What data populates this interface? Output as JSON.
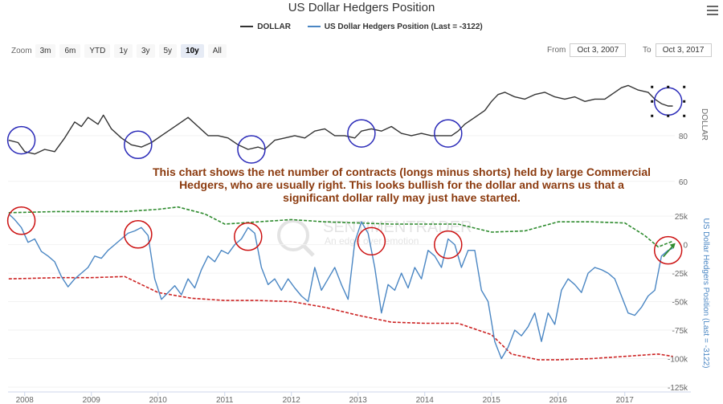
{
  "title": "US Dollar Hedgers Position",
  "legend": [
    {
      "label": "DOLLAR",
      "color": "#333333"
    },
    {
      "label": "US Dollar Hedgers Position (Last = -3122)",
      "color": "#4a86c3"
    }
  ],
  "zoom": {
    "label": "Zoom",
    "buttons": [
      "3m",
      "6m",
      "YTD",
      "1y",
      "3y",
      "5y",
      "10y",
      "All"
    ],
    "active": "10y"
  },
  "range": {
    "from_label": "From",
    "from": "Oct 3, 2007",
    "to_label": "To",
    "to": "Oct 3, 2017"
  },
  "annotation": "This chart shows the net number of contracts (longs minus shorts) held by large Commercial Hedgers, who are usually right. This looks bullish for the dollar and warns us that a significant dollar rally may just have started.",
  "watermark": {
    "brand": "SENTIMENTRADER",
    "tagline": "An edge over emotion"
  },
  "colors": {
    "dollar": "#333333",
    "hedgers": "#4a86c3",
    "upper_band": "#2e8b2e",
    "lower_band": "#cc2222",
    "blue_circle": "#2a2ab8",
    "red_circle": "#cc1111",
    "annotation_text": "#8b3a0e"
  },
  "chart_data": {
    "type": "line",
    "x_ticks": [
      "2008",
      "2009",
      "2010",
      "2011",
      "2012",
      "2013",
      "2014",
      "2015",
      "2016",
      "2017"
    ],
    "x_range": [
      2007.75,
      2017.75
    ],
    "dollar_axis": {
      "label": "DOLLAR",
      "ticks": [
        60,
        80
      ],
      "range": [
        55,
        106
      ]
    },
    "hedgers_axis": {
      "label": "US Dollar Hedgers Position (Last = -3122)",
      "ticks": [
        "25k",
        "0",
        "-25k",
        "-50k",
        "-75k",
        "-100k",
        "-125k"
      ],
      "tick_values": [
        25000,
        0,
        -25000,
        -50000,
        -75000,
        -100000,
        -125000
      ],
      "range": [
        -125000,
        30000
      ]
    },
    "dollar_series": {
      "name": "DOLLAR",
      "x": [
        2007.76,
        2007.9,
        2008.0,
        2008.15,
        2008.3,
        2008.45,
        2008.6,
        2008.75,
        2008.85,
        2008.95,
        2009.1,
        2009.18,
        2009.3,
        2009.45,
        2009.6,
        2009.75,
        2009.9,
        2010.05,
        2010.2,
        2010.35,
        2010.45,
        2010.6,
        2010.75,
        2010.9,
        2011.05,
        2011.2,
        2011.35,
        2011.5,
        2011.6,
        2011.75,
        2011.9,
        2012.05,
        2012.2,
        2012.35,
        2012.5,
        2012.65,
        2012.8,
        2012.95,
        2013.05,
        2013.2,
        2013.35,
        2013.5,
        2013.65,
        2013.8,
        2013.95,
        2014.1,
        2014.25,
        2014.4,
        2014.5,
        2014.6,
        2014.75,
        2014.9,
        2015.0,
        2015.1,
        2015.2,
        2015.35,
        2015.5,
        2015.65,
        2015.8,
        2015.95,
        2016.1,
        2016.25,
        2016.4,
        2016.55,
        2016.7,
        2016.85,
        2016.95,
        2017.05,
        2017.2,
        2017.35,
        2017.45,
        2017.55,
        2017.65,
        2017.72
      ],
      "values": [
        78,
        77,
        73,
        72,
        74,
        73,
        79,
        86,
        84,
        88,
        85,
        89,
        83,
        79,
        76,
        75,
        77,
        80,
        83,
        86,
        88,
        84,
        80,
        80,
        79,
        76,
        74,
        75,
        74,
        78,
        79,
        80,
        79,
        82,
        83,
        80,
        80,
        79,
        82,
        83,
        82,
        84,
        81,
        80,
        81,
        80,
        80,
        80,
        82,
        85,
        88,
        91,
        95,
        98,
        99,
        97,
        96,
        98,
        99,
        97,
        96,
        97,
        95,
        96,
        96,
        99,
        101,
        102,
        100,
        99,
        96,
        94,
        93,
        93
      ]
    },
    "hedgers_series": {
      "name": "US Dollar Hedgers Position (Last = -3122)",
      "x": [
        2007.76,
        2007.85,
        2007.95,
        2008.05,
        2008.15,
        2008.25,
        2008.35,
        2008.45,
        2008.55,
        2008.65,
        2008.75,
        2008.85,
        2008.95,
        2009.05,
        2009.15,
        2009.25,
        2009.35,
        2009.45,
        2009.55,
        2009.65,
        2009.75,
        2009.85,
        2009.95,
        2010.05,
        2010.15,
        2010.25,
        2010.35,
        2010.45,
        2010.55,
        2010.65,
        2010.75,
        2010.85,
        2010.95,
        2011.05,
        2011.15,
        2011.25,
        2011.35,
        2011.45,
        2011.55,
        2011.65,
        2011.75,
        2011.85,
        2011.95,
        2012.05,
        2012.15,
        2012.25,
        2012.35,
        2012.45,
        2012.55,
        2012.65,
        2012.75,
        2012.85,
        2012.95,
        2013.05,
        2013.15,
        2013.25,
        2013.35,
        2013.45,
        2013.55,
        2013.65,
        2013.75,
        2013.85,
        2013.95,
        2014.05,
        2014.15,
        2014.25,
        2014.35,
        2014.45,
        2014.55,
        2014.65,
        2014.75,
        2014.85,
        2014.95,
        2015.05,
        2015.15,
        2015.25,
        2015.35,
        2015.45,
        2015.55,
        2015.65,
        2015.75,
        2015.85,
        2015.95,
        2016.05,
        2016.15,
        2016.25,
        2016.35,
        2016.45,
        2016.55,
        2016.65,
        2016.75,
        2016.85,
        2016.95,
        2017.05,
        2017.15,
        2017.25,
        2017.35,
        2017.45,
        2017.55,
        2017.65,
        2017.72
      ],
      "values": [
        27000,
        22000,
        15000,
        2000,
        5000,
        -6000,
        -10000,
        -15000,
        -28000,
        -37000,
        -30000,
        -25000,
        -20000,
        -10000,
        -12000,
        -5000,
        0,
        5000,
        10000,
        12000,
        15000,
        8000,
        -30000,
        -48000,
        -42000,
        -36000,
        -44000,
        -30000,
        -38000,
        -22000,
        -10000,
        -15000,
        -5000,
        -8000,
        0,
        5000,
        15000,
        10000,
        -20000,
        -35000,
        -30000,
        -40000,
        -30000,
        -38000,
        -45000,
        -50000,
        -20000,
        -40000,
        -30000,
        -20000,
        -35000,
        -48000,
        2000,
        20000,
        10000,
        -20000,
        -60000,
        -35000,
        -40000,
        -25000,
        -38000,
        -20000,
        -30000,
        -5000,
        -10000,
        -20000,
        5000,
        0,
        -20000,
        -5000,
        -5000,
        -40000,
        -50000,
        -85000,
        -100000,
        -90000,
        -75000,
        -80000,
        -72000,
        -60000,
        -85000,
        -60000,
        -70000,
        -40000,
        -30000,
        -35000,
        -42000,
        -25000,
        -20000,
        -22000,
        -25000,
        -30000,
        -45000,
        -60000,
        -62000,
        -55000,
        -45000,
        -40000,
        -10000,
        -5000,
        -3122
      ]
    },
    "upper_band": {
      "x": [
        2007.76,
        2008.5,
        2009.0,
        2009.5,
        2010.0,
        2010.3,
        2010.7,
        2011.0,
        2011.5,
        2012.0,
        2012.5,
        2013.0,
        2013.5,
        2014.0,
        2014.5,
        2015.0,
        2015.5,
        2016.0,
        2016.5,
        2017.0,
        2017.3,
        2017.5,
        2017.72
      ],
      "values": [
        28000,
        29000,
        29000,
        29000,
        31000,
        33000,
        27000,
        18000,
        20000,
        22000,
        20000,
        19000,
        18000,
        18000,
        18000,
        11000,
        12000,
        20000,
        20000,
        19000,
        8000,
        -2000,
        3000
      ]
    },
    "lower_band": {
      "x": [
        2007.76,
        2008.5,
        2009.0,
        2009.5,
        2010.0,
        2010.5,
        2011.0,
        2011.5,
        2012.0,
        2012.5,
        2013.0,
        2013.5,
        2014.0,
        2014.5,
        2015.0,
        2015.3,
        2015.7,
        2016.0,
        2016.5,
        2017.0,
        2017.5,
        2017.72
      ],
      "values": [
        -30000,
        -29000,
        -29000,
        -28000,
        -42000,
        -47000,
        -49000,
        -49000,
        -50000,
        -55000,
        -62000,
        -68000,
        -69000,
        -69000,
        -79000,
        -96000,
        -101000,
        -101000,
        -100000,
        -98000,
        -96000,
        -98000
      ]
    },
    "blue_circles_dollar": [
      [
        2007.95,
        78
      ],
      [
        2009.7,
        76
      ],
      [
        2011.4,
        74
      ],
      [
        2013.05,
        81
      ],
      [
        2014.35,
        81
      ],
      [
        2017.65,
        95
      ]
    ],
    "red_circles_hedgers": [
      [
        2007.95,
        21000
      ],
      [
        2009.7,
        9000
      ],
      [
        2011.35,
        7000
      ],
      [
        2013.2,
        3000
      ],
      [
        2014.35,
        0
      ],
      [
        2017.65,
        -5000
      ]
    ]
  }
}
